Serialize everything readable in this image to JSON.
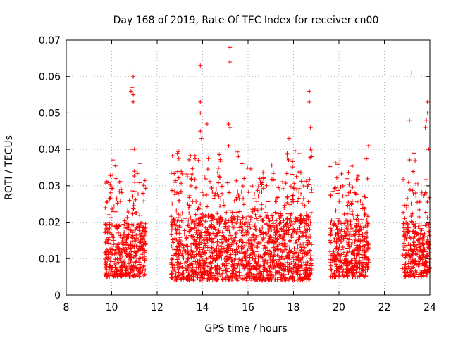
{
  "chart_data": {
    "type": "scatter",
    "title": "Day 168 of 2019, Rate Of TEC Index for receiver cn00",
    "xlabel": "GPS time / hours",
    "ylabel": "ROTI / TECUs",
    "xlim": [
      8,
      24
    ],
    "ylim": [
      0,
      0.07
    ],
    "xticks": [
      8,
      10,
      12,
      14,
      16,
      18,
      20,
      22,
      24
    ],
    "yticks": [
      0,
      0.01,
      0.02,
      0.03,
      0.04,
      0.05,
      0.06,
      0.07
    ],
    "xtick_labels": [
      "8",
      "10",
      "12",
      "14",
      "16",
      "18",
      "20",
      "22",
      "24"
    ],
    "ytick_labels": [
      "0",
      "0.01",
      "0.02",
      "0.03",
      "0.04",
      "0.05",
      "0.06",
      "0.07"
    ],
    "grid": true,
    "marker": "+",
    "color": "#ff0000",
    "series": [
      {
        "name": "ROTI",
        "segments": [
          {
            "x_start": 9.7,
            "x_end": 11.5,
            "typical_min": 0.005,
            "typical_max": 0.02,
            "peak": 0.061
          },
          {
            "x_start": 12.6,
            "x_end": 18.8,
            "typical_min": 0.004,
            "typical_max": 0.022,
            "peak": 0.068
          },
          {
            "x_start": 19.6,
            "x_end": 21.3,
            "typical_min": 0.005,
            "typical_max": 0.02,
            "peak": 0.041
          },
          {
            "x_start": 22.8,
            "x_end": 24.0,
            "typical_min": 0.005,
            "typical_max": 0.02,
            "peak": 0.061
          }
        ],
        "outliers": [
          {
            "x": 10.9,
            "y": 0.061
          },
          {
            "x": 10.95,
            "y": 0.06
          },
          {
            "x": 10.9,
            "y": 0.057
          },
          {
            "x": 10.85,
            "y": 0.056
          },
          {
            "x": 10.95,
            "y": 0.055
          },
          {
            "x": 10.95,
            "y": 0.053
          },
          {
            "x": 10.9,
            "y": 0.04
          },
          {
            "x": 11.0,
            "y": 0.04
          },
          {
            "x": 11.0,
            "y": 0.034
          },
          {
            "x": 10.05,
            "y": 0.033
          },
          {
            "x": 13.9,
            "y": 0.063
          },
          {
            "x": 13.9,
            "y": 0.053
          },
          {
            "x": 13.9,
            "y": 0.05
          },
          {
            "x": 13.9,
            "y": 0.045
          },
          {
            "x": 13.95,
            "y": 0.043
          },
          {
            "x": 14.2,
            "y": 0.047
          },
          {
            "x": 15.2,
            "y": 0.068
          },
          {
            "x": 15.2,
            "y": 0.064
          },
          {
            "x": 15.15,
            "y": 0.047
          },
          {
            "x": 15.2,
            "y": 0.046
          },
          {
            "x": 15.15,
            "y": 0.041
          },
          {
            "x": 17.8,
            "y": 0.043
          },
          {
            "x": 18.7,
            "y": 0.056
          },
          {
            "x": 18.7,
            "y": 0.053
          },
          {
            "x": 18.75,
            "y": 0.046
          },
          {
            "x": 18.75,
            "y": 0.04
          },
          {
            "x": 18.8,
            "y": 0.038
          },
          {
            "x": 21.3,
            "y": 0.041
          },
          {
            "x": 23.2,
            "y": 0.061
          },
          {
            "x": 23.9,
            "y": 0.053
          },
          {
            "x": 23.9,
            "y": 0.05
          },
          {
            "x": 23.85,
            "y": 0.048
          },
          {
            "x": 23.8,
            "y": 0.046
          },
          {
            "x": 23.1,
            "y": 0.048
          },
          {
            "x": 23.95,
            "y": 0.04
          },
          {
            "x": 23.3,
            "y": 0.039
          }
        ]
      }
    ]
  }
}
